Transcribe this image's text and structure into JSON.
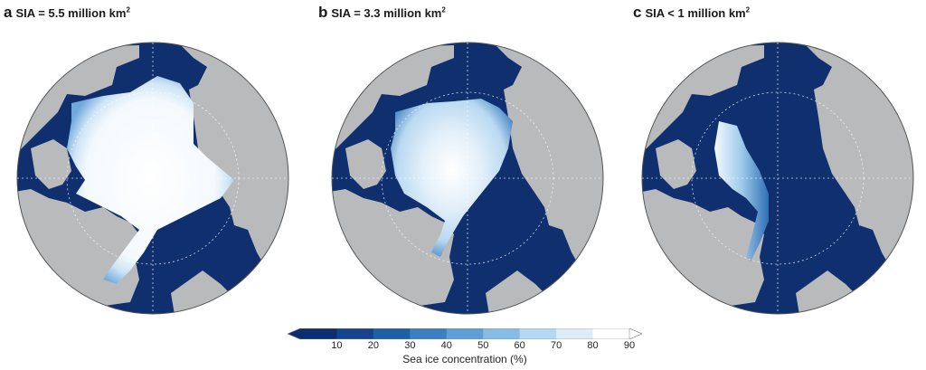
{
  "panels": [
    {
      "letter": "a",
      "label": "SIA = 5.5 million km",
      "sup": "2"
    },
    {
      "letter": "b",
      "label": "SIA = 3.3 million km",
      "sup": "2"
    },
    {
      "letter": "c",
      "label": "SIA < 1 million km",
      "sup": "2"
    }
  ],
  "colorbar": {
    "ticks": [
      "10",
      "20",
      "30",
      "40",
      "50",
      "60",
      "70",
      "80",
      "90"
    ],
    "colors": [
      "#0d2e6e",
      "#14448c",
      "#1f5fa6",
      "#3d7fc0",
      "#5f9fd6",
      "#86bde6",
      "#b3d8f1",
      "#dcedf9",
      "#ffffff"
    ],
    "caption": "Sea ice concentration (%)"
  },
  "colors": {
    "land": "#b9babc",
    "ocean_low_ice": "#0f2f6e",
    "ice_high": "#ffffff",
    "graticule": "#ffffff"
  }
}
